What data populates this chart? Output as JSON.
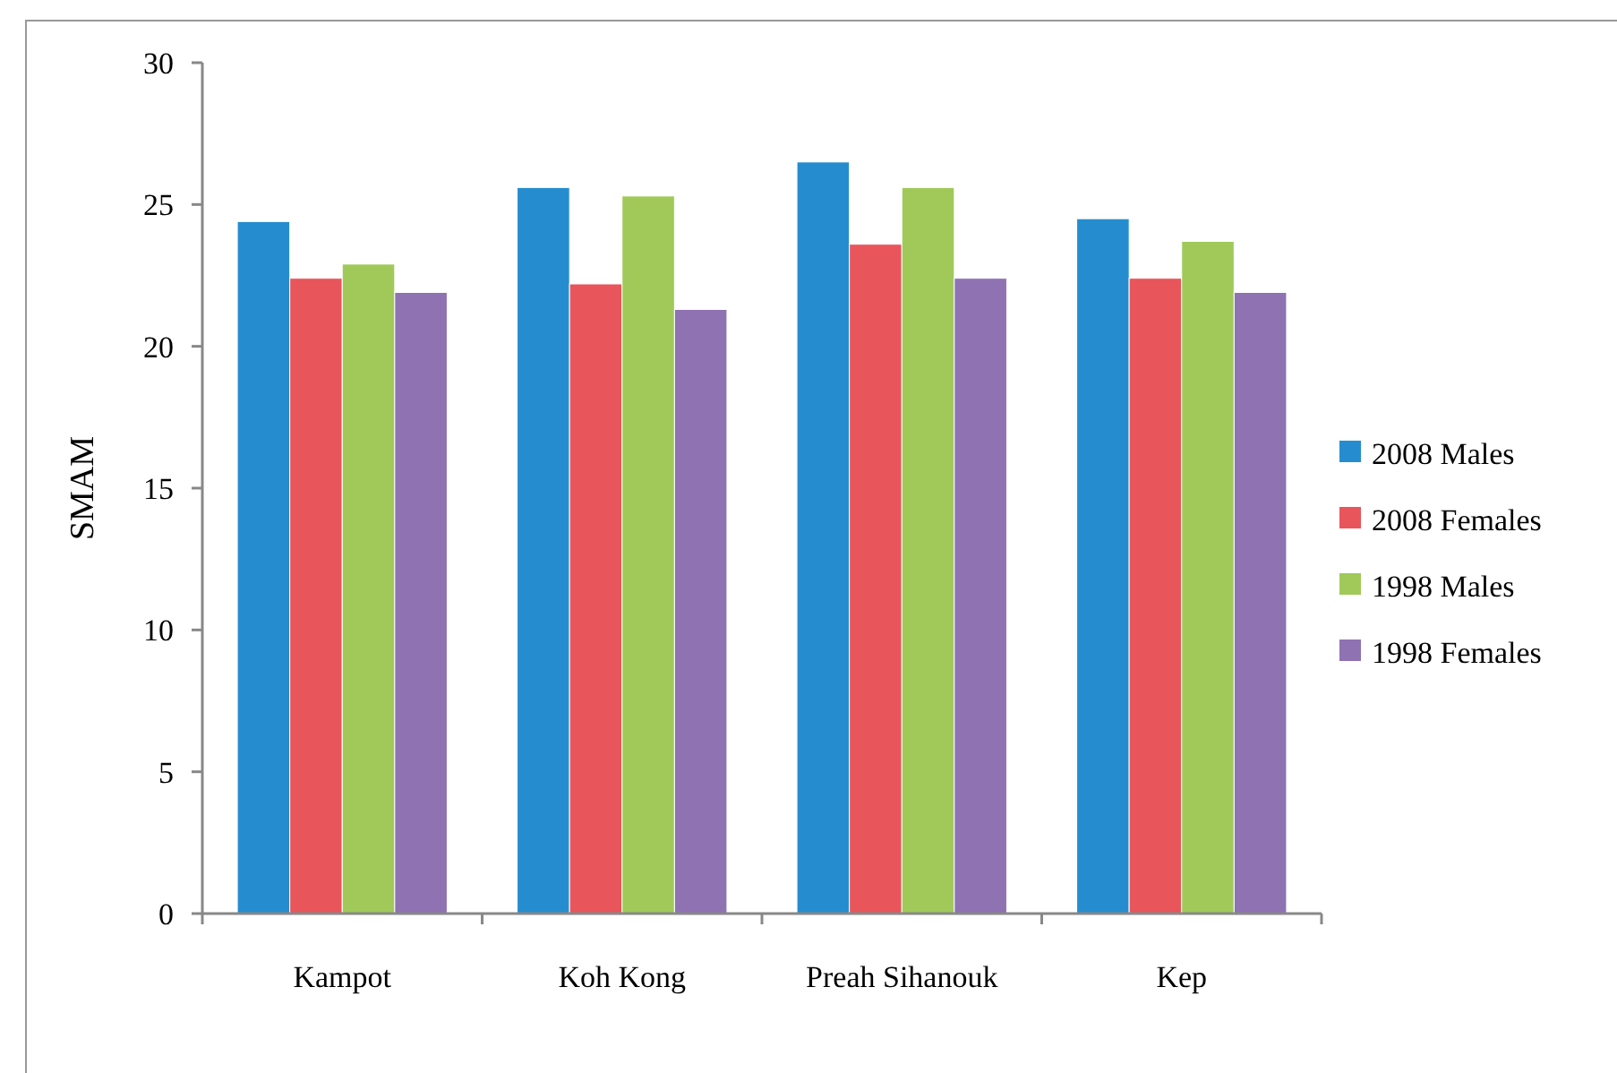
{
  "chart_data": {
    "type": "bar",
    "ylabel": "SMAM",
    "categories": [
      "Kampot",
      "Koh Kong",
      "Preah Sihanouk",
      "Kep"
    ],
    "series": [
      {
        "name": "2008 Males",
        "color": "#258dcf",
        "values": [
          24.4,
          25.6,
          26.5,
          24.5
        ]
      },
      {
        "name": "2008 Females",
        "color": "#e8555b",
        "values": [
          22.4,
          22.2,
          23.6,
          22.4
        ]
      },
      {
        "name": "1998 Males",
        "color": "#a0c95a",
        "values": [
          22.9,
          25.3,
          25.6,
          23.7
        ]
      },
      {
        "name": "1998 Females",
        "color": "#8f72b2",
        "values": [
          21.9,
          21.3,
          22.4,
          21.9
        ]
      }
    ],
    "ylim": [
      0,
      30
    ],
    "yticks": [
      0,
      5,
      10,
      15,
      20,
      25,
      30
    ],
    "grid": false,
    "legend": "right"
  }
}
